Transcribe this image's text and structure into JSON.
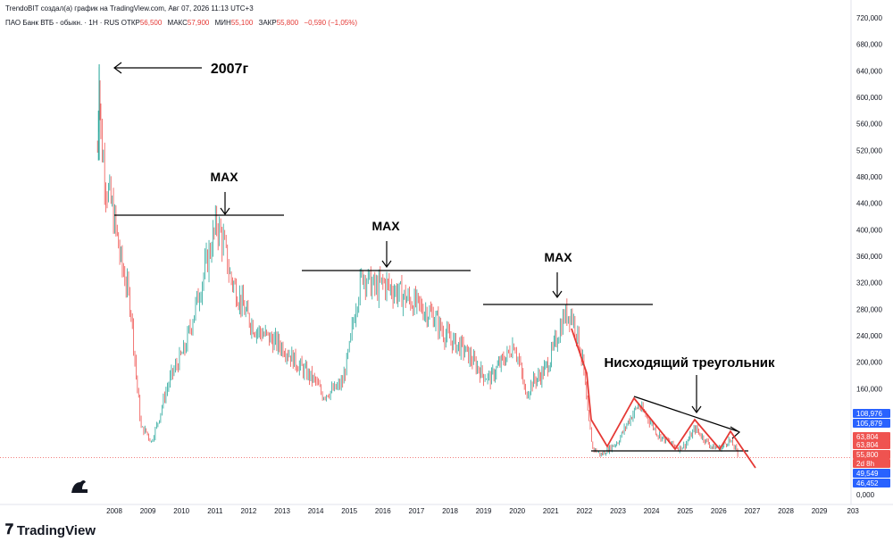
{
  "header": {
    "author_line": "TrendoBIT создал(а) график на TradingView.com, Авг 07, 2026 11:13 UTC+3",
    "symbol": "ПАО Банк ВТБ - обыкн. · 1Н · RUS",
    "open_label": "ОТКР",
    "open_value": "56,500",
    "high_label": "МАКС",
    "high_value": "57,900",
    "low_label": "МИН",
    "low_value": "55,100",
    "close_label": "ЗАКР",
    "close_value": "55,800",
    "change": "−0,590 (−1,05%)"
  },
  "footer": {
    "brand": "TradingView"
  },
  "colors": {
    "up": "#26a69a",
    "down": "#ef5350",
    "annotation": "#000000",
    "red_line": "#e53935",
    "blue_badge": "#2962ff",
    "red_badge": "#ef5350"
  },
  "chart_data": {
    "type": "candlestick",
    "x_ticks": [
      "2008",
      "2009",
      "2010",
      "2011",
      "2012",
      "2013",
      "2014",
      "2015",
      "2016",
      "2017",
      "2018",
      "2019",
      "2020",
      "2021",
      "2022",
      "2023",
      "2024",
      "2025",
      "2026",
      "2027",
      "2028",
      "2029",
      "203"
    ],
    "y_ticks": [
      "720,000",
      "680,000",
      "640,000",
      "600,000",
      "560,000",
      "520,000",
      "480,000",
      "440,000",
      "400,000",
      "360,000",
      "320,000",
      "280,000",
      "240,000",
      "200,000",
      "160,000",
      "0,000"
    ],
    "price_badges": [
      {
        "text": "108,976",
        "color": "blue"
      },
      {
        "text": "105,879",
        "color": "blue"
      },
      {
        "text": "63,804",
        "color": "red"
      },
      {
        "text": "63,804",
        "color": "red"
      },
      {
        "text": "55,800",
        "color": "red"
      },
      {
        "text": "2d 8h",
        "color": "red"
      },
      {
        "text": "49,549",
        "color": "blue"
      },
      {
        "text": "46,452",
        "color": "blue"
      }
    ],
    "annotations": [
      {
        "text": "2007г"
      },
      {
        "text": "MAX"
      },
      {
        "text": "MAX"
      },
      {
        "text": "MAX"
      },
      {
        "text": "Нисходящий треугольник"
      }
    ],
    "price_path": [
      [
        2007.5,
        520
      ],
      [
        2007.55,
        650
      ],
      [
        2007.6,
        540
      ],
      [
        2007.75,
        470
      ],
      [
        2007.9,
        440
      ],
      [
        2008.05,
        400
      ],
      [
        2008.2,
        350
      ],
      [
        2008.35,
        320
      ],
      [
        2008.5,
        280
      ],
      [
        2008.65,
        180
      ],
      [
        2008.8,
        100
      ],
      [
        2008.95,
        95
      ],
      [
        2009.1,
        80
      ],
      [
        2009.3,
        110
      ],
      [
        2009.5,
        150
      ],
      [
        2009.7,
        180
      ],
      [
        2009.9,
        200
      ],
      [
        2010.1,
        220
      ],
      [
        2010.3,
        260
      ],
      [
        2010.5,
        300
      ],
      [
        2010.7,
        340
      ],
      [
        2010.9,
        380
      ],
      [
        2011.05,
        410
      ],
      [
        2011.25,
        380
      ],
      [
        2011.45,
        330
      ],
      [
        2011.7,
        300
      ],
      [
        2011.95,
        270
      ],
      [
        2012.2,
        250
      ],
      [
        2012.5,
        240
      ],
      [
        2012.8,
        230
      ],
      [
        2013.1,
        220
      ],
      [
        2013.4,
        200
      ],
      [
        2013.7,
        185
      ],
      [
        2014.0,
        170
      ],
      [
        2014.2,
        150
      ],
      [
        2014.4,
        155
      ],
      [
        2014.6,
        160
      ],
      [
        2014.8,
        170
      ],
      [
        2015.0,
        220
      ],
      [
        2015.2,
        290
      ],
      [
        2015.4,
        335
      ],
      [
        2015.6,
        320
      ],
      [
        2015.8,
        310
      ],
      [
        2016.0,
        320
      ],
      [
        2016.3,
        310
      ],
      [
        2016.6,
        300
      ],
      [
        2016.9,
        290
      ],
      [
        2017.2,
        280
      ],
      [
        2017.5,
        270
      ],
      [
        2017.8,
        245
      ],
      [
        2018.1,
        230
      ],
      [
        2018.4,
        220
      ],
      [
        2018.7,
        200
      ],
      [
        2019.0,
        180
      ],
      [
        2019.2,
        175
      ],
      [
        2019.45,
        195
      ],
      [
        2019.7,
        210
      ],
      [
        2019.9,
        230
      ],
      [
        2020.1,
        190
      ],
      [
        2020.25,
        150
      ],
      [
        2020.45,
        170
      ],
      [
        2020.7,
        180
      ],
      [
        2020.95,
        200
      ],
      [
        2021.2,
        240
      ],
      [
        2021.4,
        270
      ],
      [
        2021.6,
        275
      ],
      [
        2021.8,
        240
      ],
      [
        2021.95,
        200
      ],
      [
        2022.1,
        120
      ],
      [
        2022.25,
        70
      ],
      [
        2022.5,
        60
      ],
      [
        2022.75,
        70
      ],
      [
        2023.0,
        80
      ],
      [
        2023.3,
        110
      ],
      [
        2023.6,
        135
      ],
      [
        2023.9,
        115
      ],
      [
        2024.2,
        90
      ],
      [
        2024.5,
        80
      ],
      [
        2024.8,
        70
      ],
      [
        2025.0,
        75
      ],
      [
        2025.3,
        100
      ],
      [
        2025.55,
        85
      ],
      [
        2025.8,
        72
      ],
      [
        2026.05,
        70
      ],
      [
        2026.3,
        82
      ],
      [
        2026.5,
        70
      ],
      [
        2026.6,
        55
      ]
    ]
  }
}
